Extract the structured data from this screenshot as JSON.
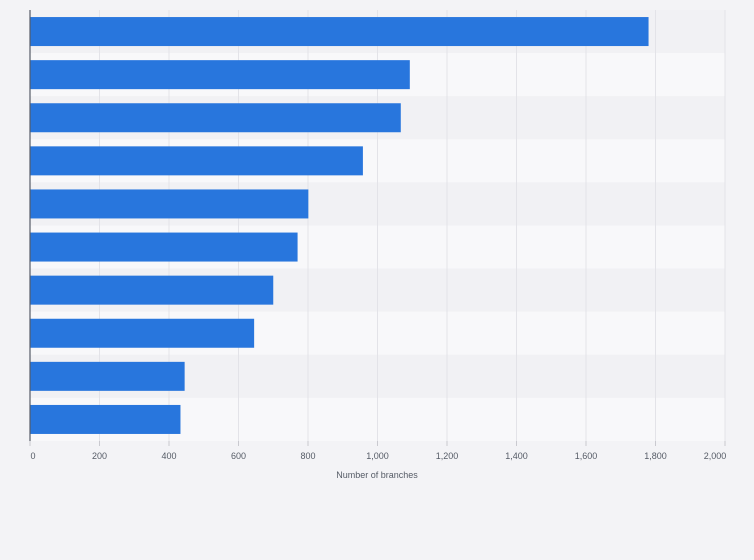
{
  "chart_data": {
    "type": "bar",
    "orientation": "horizontal",
    "title": "",
    "xlabel": "Number of branches",
    "ylabel": "",
    "xlim": [
      0,
      2000
    ],
    "x_ticks": [
      "0",
      "200",
      "400",
      "600",
      "800",
      "1,000",
      "1,200",
      "1,400",
      "1,600",
      "1,800",
      "2,000"
    ],
    "tick_values": [
      0,
      200,
      400,
      600,
      800,
      1000,
      1200,
      1400,
      1600,
      1800,
      2000
    ],
    "categories": [
      "",
      "",
      "",
      "",
      "",
      "",
      "",
      "",
      "",
      ""
    ],
    "values": [
      1780,
      1093,
      1067,
      958,
      801,
      770,
      700,
      645,
      445,
      433
    ],
    "grid": true,
    "legend": "none",
    "colors": {
      "bar": "#2876dd",
      "band_light": "#f8f8fa",
      "band_dark": "#f1f1f4",
      "grid": "#e3e3e8",
      "axis": "#555b66",
      "background": "#f3f3f6"
    }
  }
}
